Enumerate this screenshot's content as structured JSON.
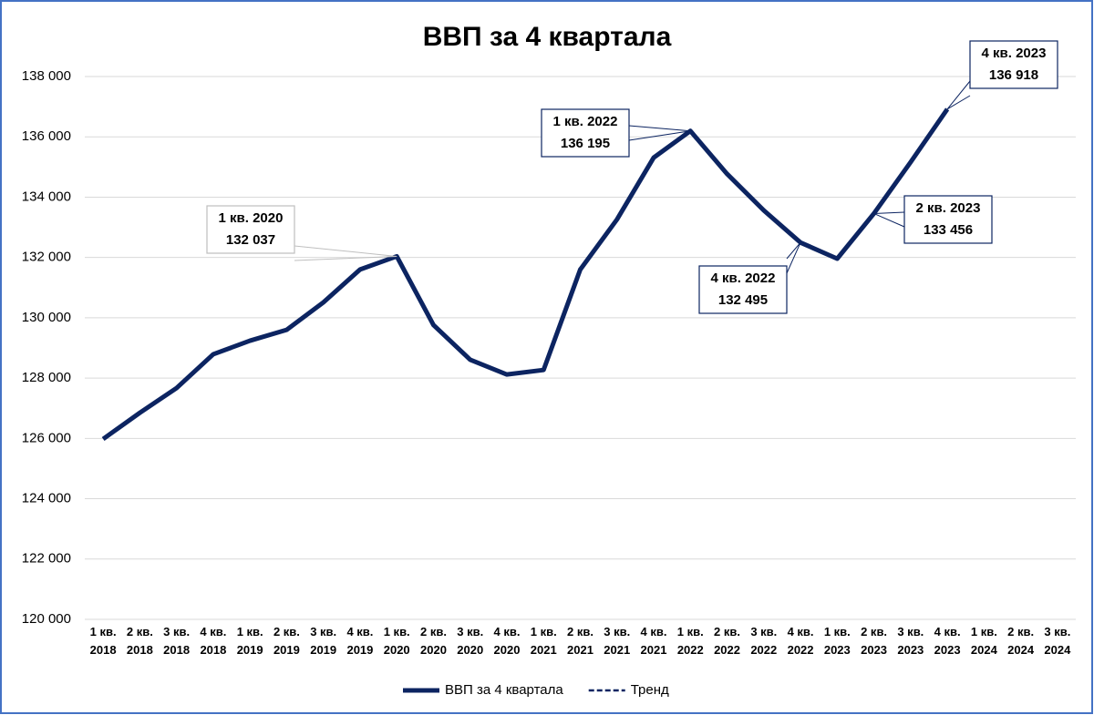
{
  "chart_data": {
    "type": "line",
    "title": "ВВП за 4 квартала",
    "categories": [
      "1 кв. 2018",
      "2 кв. 2018",
      "3 кв. 2018",
      "4 кв. 2018",
      "1 кв. 2019",
      "2 кв. 2019",
      "3 кв. 2019",
      "4 кв. 2019",
      "1 кв. 2020",
      "2 кв. 2020",
      "3 кв. 2020",
      "4 кв. 2020",
      "1 кв. 2021",
      "2 кв. 2021",
      "3 кв. 2021",
      "4 кв. 2021",
      "1 кв. 2022",
      "2 кв. 2022",
      "3 кв. 2022",
      "4 кв. 2022",
      "1 кв. 2023",
      "2 кв. 2023",
      "3 кв. 2023",
      "4 кв. 2023",
      "1 кв. 2024",
      "2 кв. 2024",
      "3 кв. 2024"
    ],
    "series": [
      {
        "name": "ВВП за 4 квартала",
        "color": "#0c2461",
        "dash": false,
        "values": [
          125980,
          126850,
          127670,
          128790,
          129240,
          129600,
          130510,
          131600,
          132037,
          129760,
          128610,
          128120,
          128270,
          131600,
          133260,
          135310,
          136195,
          134770,
          133560,
          132495,
          131960,
          133456,
          135160,
          136918,
          null,
          null,
          null
        ],
        "value_labels": [
          null,
          null,
          null,
          null,
          null,
          null,
          null,
          null,
          "132 037",
          null,
          null,
          null,
          null,
          null,
          null,
          null,
          "136 195",
          null,
          null,
          "132 495",
          null,
          "133 456",
          null,
          "136 918",
          null,
          null,
          null
        ]
      },
      {
        "name": "Тренд",
        "color": "#0c2461",
        "dash": true,
        "values": [
          null,
          null,
          null,
          null,
          null,
          null,
          null,
          null,
          null,
          null,
          null,
          null,
          null,
          null,
          null,
          null,
          null,
          null,
          null,
          null,
          null,
          null,
          null,
          null,
          null,
          null,
          null
        ]
      }
    ],
    "ylim": [
      120000,
      138000
    ],
    "yticks": [
      {
        "value": 120000,
        "label": "120 000"
      },
      {
        "value": 122000,
        "label": "122 000"
      },
      {
        "value": 124000,
        "label": "124 000"
      },
      {
        "value": 126000,
        "label": "126 000"
      },
      {
        "value": 128000,
        "label": "128 000"
      },
      {
        "value": 130000,
        "label": "130 000"
      },
      {
        "value": 132000,
        "label": "132 000"
      },
      {
        "value": 134000,
        "label": "134 000"
      },
      {
        "value": 136000,
        "label": "136 000"
      },
      {
        "value": 138000,
        "label": "138 000"
      }
    ],
    "grid": true,
    "legend": "bottom"
  }
}
